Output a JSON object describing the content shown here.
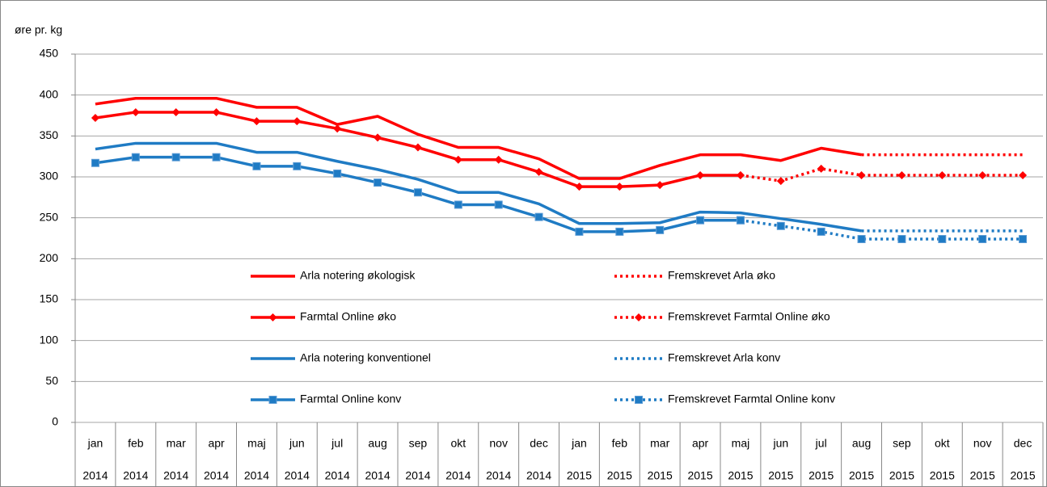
{
  "chart_data": {
    "type": "line",
    "y_label": "øre pr. kg",
    "categories": [
      "jan",
      "feb",
      "mar",
      "apr",
      "maj",
      "jun",
      "jul",
      "aug",
      "sep",
      "okt",
      "nov",
      "dec",
      "jan",
      "feb",
      "mar",
      "apr",
      "maj",
      "jun",
      "jul",
      "aug",
      "sep",
      "okt",
      "nov",
      "dec"
    ],
    "category_groups": [
      "2014",
      "2014",
      "2014",
      "2014",
      "2014",
      "2014",
      "2014",
      "2014",
      "2014",
      "2014",
      "2014",
      "2014",
      "2015",
      "2015",
      "2015",
      "2015",
      "2015",
      "2015",
      "2015",
      "2015",
      "2015",
      "2015",
      "2015",
      "2015"
    ],
    "ylim": [
      0,
      450
    ],
    "yticks": [
      0,
      50,
      100,
      150,
      200,
      250,
      300,
      350,
      400,
      450
    ],
    "grid": true,
    "series": [
      {
        "name": "Arla notering økologisk",
        "color": "#ff0000",
        "dash": false,
        "marker": null,
        "values": [
          389,
          396,
          396,
          396,
          385,
          385,
          364,
          374,
          352,
          336,
          336,
          322,
          298,
          298,
          314,
          327,
          327,
          320,
          335,
          327,
          null,
          null,
          null,
          null
        ]
      },
      {
        "name": "Fremskrevet Arla øko",
        "color": "#ff0000",
        "dash": true,
        "marker": null,
        "values": [
          null,
          null,
          null,
          null,
          null,
          null,
          null,
          null,
          null,
          null,
          null,
          null,
          null,
          null,
          null,
          null,
          null,
          null,
          null,
          327,
          327,
          327,
          327,
          327
        ]
      },
      {
        "name": "Farmtal Online øko",
        "color": "#ff0000",
        "dash": false,
        "marker": "diamond",
        "values": [
          372,
          379,
          379,
          379,
          368,
          368,
          359,
          348,
          336,
          321,
          321,
          306,
          288,
          288,
          290,
          302,
          302,
          null,
          null,
          null,
          null,
          null,
          null,
          null
        ]
      },
      {
        "name": "Fremskrevet Farmtal Online øko",
        "color": "#ff0000",
        "dash": true,
        "marker": "diamond",
        "values": [
          null,
          null,
          null,
          null,
          null,
          null,
          null,
          null,
          null,
          null,
          null,
          null,
          null,
          null,
          null,
          null,
          302,
          295,
          310,
          302,
          302,
          302,
          302,
          302
        ]
      },
      {
        "name": "Arla notering konventionel",
        "color": "#1f7bc4",
        "dash": false,
        "marker": null,
        "values": [
          334,
          341,
          341,
          341,
          330,
          330,
          319,
          309,
          297,
          281,
          281,
          267,
          243,
          243,
          244,
          257,
          256,
          249,
          242,
          234,
          null,
          null,
          null,
          null
        ]
      },
      {
        "name": "Fremskrevet Arla konv",
        "color": "#1f7bc4",
        "dash": true,
        "marker": null,
        "values": [
          null,
          null,
          null,
          null,
          null,
          null,
          null,
          null,
          null,
          null,
          null,
          null,
          null,
          null,
          null,
          null,
          null,
          null,
          null,
          234,
          234,
          234,
          234,
          234
        ]
      },
      {
        "name": "Farmtal Online konv",
        "color": "#1f7bc4",
        "dash": false,
        "marker": "square",
        "values": [
          317,
          324,
          324,
          324,
          313,
          313,
          304,
          293,
          281,
          266,
          266,
          251,
          233,
          233,
          235,
          247,
          247,
          null,
          null,
          null,
          null,
          null,
          null,
          null
        ]
      },
      {
        "name": "Fremskrevet Farmtal Online konv",
        "color": "#1f7bc4",
        "dash": true,
        "marker": "square",
        "values": [
          null,
          null,
          null,
          null,
          null,
          null,
          null,
          null,
          null,
          null,
          null,
          null,
          null,
          null,
          null,
          null,
          247,
          240,
          233,
          224,
          224,
          224,
          224,
          224
        ]
      }
    ]
  }
}
